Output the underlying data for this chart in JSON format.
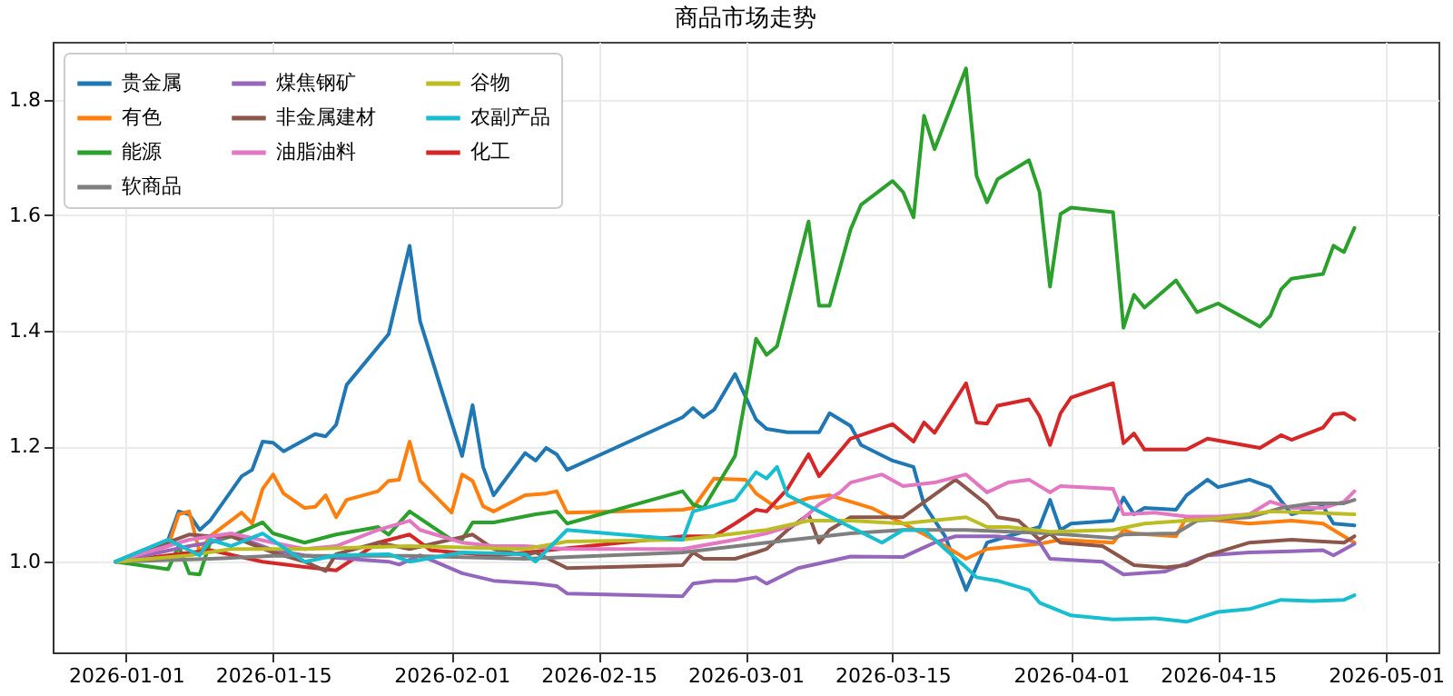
{
  "chart_data": {
    "type": "line",
    "title": "商品市场走势",
    "legend": "top left",
    "grid": true,
    "xlim": [
      "2025-12-25",
      "2026-05-06"
    ],
    "xticks": [
      "2026-01-01",
      "2026-01-15",
      "2026-02-01",
      "2026-02-15",
      "2026-03-01",
      "2026-03-15",
      "2026-04-01",
      "2026-04-15",
      "2026-05-01"
    ],
    "ylim": [
      0.843,
      1.9
    ],
    "yticks": [
      {
        "value": 1,
        "label": "1.0"
      },
      1.2,
      1.4,
      1.6,
      1.8
    ],
    "series": [
      {
        "name": "贵金属",
        "color": "#1f77b4",
        "x": [
          "2025-12-31",
          "2026-01-05",
          "2026-01-06",
          "2026-01-07",
          "2026-01-08",
          "2026-01-09",
          "2026-01-12",
          "2026-01-13",
          "2026-01-14",
          "2026-01-15",
          "2026-01-16",
          "2026-01-19",
          "2026-01-20",
          "2026-01-21",
          "2026-01-22",
          "2026-01-26",
          "2026-01-27",
          "2026-01-28",
          "2026-01-29",
          "2026-02-02",
          "2026-02-03",
          "2026-02-04",
          "2026-02-05",
          "2026-02-08",
          "2026-02-09",
          "2026-02-10",
          "2026-02-11",
          "2026-02-12",
          "2026-02-23",
          "2026-02-24",
          "2026-02-25",
          "2026-02-26",
          "2026-02-28",
          "2026-03-02",
          "2026-03-03",
          "2026-03-05",
          "2026-03-08",
          "2026-03-09",
          "2026-03-10",
          "2026-03-11",
          "2026-03-12",
          "2026-03-15",
          "2026-03-17",
          "2026-03-18",
          "2026-03-20",
          "2026-03-22",
          "2026-03-24",
          "2026-03-26",
          "2026-03-29",
          "2026-03-30",
          "2026-03-31",
          "2026-04-01",
          "2026-04-05",
          "2026-04-06",
          "2026-04-07",
          "2026-04-08",
          "2026-04-11",
          "2026-04-12",
          "2026-04-14",
          "2026-04-15",
          "2026-04-18",
          "2026-04-20",
          "2026-04-22",
          "2026-04-25",
          "2026-04-26",
          "2026-04-28"
        ],
        "values": [
          1.0,
          1.038,
          1.087,
          1.082,
          1.055,
          1.071,
          1.148,
          1.159,
          1.208,
          1.206,
          1.191,
          1.221,
          1.217,
          1.237,
          1.306,
          1.394,
          1.471,
          1.547,
          1.416,
          1.183,
          1.271,
          1.164,
          1.115,
          1.188,
          1.175,
          1.197,
          1.186,
          1.159,
          1.25,
          1.266,
          1.25,
          1.263,
          1.325,
          1.246,
          1.23,
          1.224,
          1.224,
          1.257,
          1.246,
          1.235,
          1.202,
          1.175,
          1.164,
          1.099,
          1.044,
          0.951,
          1.033,
          1.044,
          1.06,
          1.107,
          1.055,
          1.066,
          1.071,
          1.111,
          1.082,
          1.093,
          1.09,
          1.115,
          1.142,
          1.129,
          1.142,
          1.129,
          1.082,
          1.096,
          1.066,
          1.063
        ]
      },
      {
        "name": "有色",
        "color": "#ff7f0e",
        "x": [
          "2025-12-31",
          "2026-01-05",
          "2026-01-06",
          "2026-01-07",
          "2026-01-08",
          "2026-01-09",
          "2026-01-12",
          "2026-01-13",
          "2026-01-14",
          "2026-01-15",
          "2026-01-16",
          "2026-01-18",
          "2026-01-19",
          "2026-01-20",
          "2026-01-21",
          "2026-01-22",
          "2026-01-25",
          "2026-01-26",
          "2026-01-27",
          "2026-01-28",
          "2026-01-29",
          "2026-02-01",
          "2026-02-02",
          "2026-02-03",
          "2026-02-04",
          "2026-02-05",
          "2026-02-08",
          "2026-02-10",
          "2026-02-11",
          "2026-02-12",
          "2026-02-23",
          "2026-02-24",
          "2026-02-26",
          "2026-03-01",
          "2026-03-02",
          "2026-03-04",
          "2026-03-07",
          "2026-03-09",
          "2026-03-11",
          "2026-03-13",
          "2026-03-16",
          "2026-03-19",
          "2026-03-22",
          "2026-03-24",
          "2026-03-29",
          "2026-03-31",
          "2026-04-05",
          "2026-04-06",
          "2026-04-07",
          "2026-04-11",
          "2026-04-12",
          "2026-04-18",
          "2026-04-22",
          "2026-04-25",
          "2026-04-28"
        ],
        "values": [
          1.0,
          1.027,
          1.082,
          1.087,
          1.016,
          1.044,
          1.085,
          1.066,
          1.126,
          1.151,
          1.118,
          1.093,
          1.095,
          1.115,
          1.077,
          1.107,
          1.122,
          1.14,
          1.142,
          1.208,
          1.14,
          1.085,
          1.151,
          1.14,
          1.096,
          1.087,
          1.115,
          1.118,
          1.122,
          1.085,
          1.09,
          1.093,
          1.144,
          1.142,
          1.118,
          1.093,
          1.11,
          1.115,
          1.104,
          1.093,
          1.066,
          1.038,
          1.005,
          1.022,
          1.031,
          1.038,
          1.033,
          1.055,
          1.049,
          1.044,
          1.077,
          1.066,
          1.071,
          1.066,
          1.033
        ]
      },
      {
        "name": "能源",
        "color": "#2ca02c",
        "x": [
          "2025-12-31",
          "2026-01-05",
          "2026-01-06",
          "2026-01-07",
          "2026-01-08",
          "2026-01-09",
          "2026-01-11",
          "2026-01-14",
          "2026-01-15",
          "2026-01-18",
          "2026-01-21",
          "2026-01-25",
          "2026-01-26",
          "2026-01-28",
          "2026-02-01",
          "2026-02-02",
          "2026-02-03",
          "2026-02-05",
          "2026-02-09",
          "2026-02-11",
          "2026-02-12",
          "2026-02-23",
          "2026-02-24",
          "2026-02-25",
          "2026-02-28",
          "2026-03-02",
          "2026-03-03",
          "2026-03-04",
          "2026-03-07",
          "2026-03-08",
          "2026-03-09",
          "2026-03-11",
          "2026-03-12",
          "2026-03-15",
          "2026-03-16",
          "2026-03-17",
          "2026-03-18",
          "2026-03-19",
          "2026-03-22",
          "2026-03-23",
          "2026-03-24",
          "2026-03-25",
          "2026-03-28",
          "2026-03-29",
          "2026-03-30",
          "2026-03-31",
          "2026-04-01",
          "2026-04-05",
          "2026-04-06",
          "2026-04-07",
          "2026-04-08",
          "2026-04-11",
          "2026-04-13",
          "2026-04-15",
          "2026-04-19",
          "2026-04-20",
          "2026-04-21",
          "2026-04-22",
          "2026-04-25",
          "2026-04-26",
          "2026-04-27",
          "2026-04-28"
        ],
        "values": [
          1.0,
          0.987,
          1.027,
          0.98,
          0.978,
          1.033,
          1.044,
          1.068,
          1.049,
          1.033,
          1.047,
          1.06,
          1.047,
          1.087,
          1.038,
          1.038,
          1.068,
          1.068,
          1.082,
          1.087,
          1.066,
          1.122,
          1.099,
          1.093,
          1.183,
          1.386,
          1.358,
          1.373,
          1.589,
          1.443,
          1.443,
          1.575,
          1.618,
          1.659,
          1.64,
          1.596,
          1.772,
          1.714,
          1.854,
          1.668,
          1.622,
          1.662,
          1.695,
          1.64,
          1.476,
          1.602,
          1.613,
          1.605,
          1.405,
          1.462,
          1.44,
          1.487,
          1.432,
          1.447,
          1.407,
          1.426,
          1.471,
          1.49,
          1.498,
          1.547,
          1.536,
          1.578
        ]
      },
      {
        "name": "化工",
        "color": "#d62728",
        "x": [
          "2025-12-31",
          "2026-01-09",
          "2026-01-14",
          "2026-01-18",
          "2026-01-21",
          "2026-01-25",
          "2026-01-28",
          "2026-01-30",
          "2026-02-05",
          "2026-02-23",
          "2026-02-26",
          "2026-02-28",
          "2026-03-02",
          "2026-03-03",
          "2026-03-05",
          "2026-03-07",
          "2026-03-08",
          "2026-03-11",
          "2026-03-15",
          "2026-03-17",
          "2026-03-18",
          "2026-03-19",
          "2026-03-22",
          "2026-03-23",
          "2026-03-24",
          "2026-03-25",
          "2026-03-28",
          "2026-03-29",
          "2026-03-30",
          "2026-03-31",
          "2026-04-01",
          "2026-04-05",
          "2026-04-06",
          "2026-04-07",
          "2026-04-08",
          "2026-04-12",
          "2026-04-14",
          "2026-04-19",
          "2026-04-21",
          "2026-04-22",
          "2026-04-25",
          "2026-04-26",
          "2026-04-27",
          "2026-04-28"
        ],
        "values": [
          1.0,
          1.02,
          1.0,
          0.991,
          0.985,
          1.033,
          1.047,
          1.02,
          1.01,
          1.044,
          1.044,
          1.066,
          1.09,
          1.087,
          1.126,
          1.186,
          1.148,
          1.213,
          1.238,
          1.208,
          1.241,
          1.223,
          1.309,
          1.241,
          1.239,
          1.27,
          1.281,
          1.252,
          1.202,
          1.257,
          1.284,
          1.309,
          1.205,
          1.222,
          1.194,
          1.194,
          1.213,
          1.197,
          1.219,
          1.211,
          1.232,
          1.255,
          1.257,
          1.246
        ]
      },
      {
        "name": "煤焦钢矿",
        "color": "#9467bd",
        "x": [
          "2025-12-31",
          "2026-01-07",
          "2026-01-09",
          "2026-01-11",
          "2026-01-15",
          "2026-01-18",
          "2026-01-26",
          "2026-01-27",
          "2026-01-29",
          "2026-02-02",
          "2026-02-05",
          "2026-02-09",
          "2026-02-11",
          "2026-02-12",
          "2026-02-23",
          "2026-02-24",
          "2026-02-26",
          "2026-02-28",
          "2026-03-02",
          "2026-03-03",
          "2026-03-06",
          "2026-03-11",
          "2026-03-16",
          "2026-03-19",
          "2026-03-21",
          "2026-03-25",
          "2026-03-29",
          "2026-03-30",
          "2026-04-04",
          "2026-04-06",
          "2026-04-10",
          "2026-04-14",
          "2026-04-18",
          "2026-04-22",
          "2026-04-25",
          "2026-04-26",
          "2026-04-28"
        ],
        "values": [
          1.0,
          1.027,
          1.033,
          1.047,
          1.02,
          1.011,
          1.0,
          0.995,
          1.011,
          0.98,
          0.967,
          0.962,
          0.958,
          0.945,
          0.94,
          0.962,
          0.967,
          0.967,
          0.973,
          0.962,
          0.989,
          1.009,
          1.008,
          1.033,
          1.044,
          1.044,
          1.033,
          1.005,
          1.0,
          0.978,
          0.983,
          1.011,
          1.016,
          1.018,
          1.02,
          1.011,
          1.031
        ]
      },
      {
        "name": "非金属建材",
        "color": "#8c564b",
        "x": [
          "2025-12-31",
          "2026-01-07",
          "2026-01-09",
          "2026-01-11",
          "2026-01-15",
          "2026-01-18",
          "2026-01-20",
          "2026-01-21",
          "2026-01-25",
          "2026-01-28",
          "2026-02-03",
          "2026-02-05",
          "2026-02-08",
          "2026-02-09",
          "2026-02-12",
          "2026-02-23",
          "2026-02-24",
          "2026-02-25",
          "2026-02-28",
          "2026-03-02",
          "2026-03-03",
          "2026-03-05",
          "2026-03-07",
          "2026-03-08",
          "2026-03-09",
          "2026-03-11",
          "2026-03-16",
          "2026-03-21",
          "2026-03-24",
          "2026-03-25",
          "2026-03-27",
          "2026-03-29",
          "2026-03-30",
          "2026-03-31",
          "2026-04-04",
          "2026-04-07",
          "2026-04-10",
          "2026-04-12",
          "2026-04-14",
          "2026-04-18",
          "2026-04-22",
          "2026-04-25",
          "2026-04-27",
          "2026-04-28"
        ],
        "values": [
          1.0,
          1.047,
          1.044,
          1.044,
          1.016,
          1.0,
          0.984,
          1.013,
          1.033,
          1.022,
          1.047,
          1.022,
          1.011,
          1.016,
          0.989,
          0.994,
          1.016,
          1.005,
          1.005,
          1.016,
          1.022,
          1.055,
          1.082,
          1.033,
          1.055,
          1.077,
          1.077,
          1.142,
          1.099,
          1.077,
          1.071,
          1.038,
          1.049,
          1.033,
          1.027,
          0.994,
          0.99,
          0.994,
          1.011,
          1.033,
          1.038,
          1.035,
          1.033,
          1.044
        ]
      },
      {
        "name": "油脂油料",
        "color": "#e377c2",
        "x": [
          "2025-12-31",
          "2026-01-07",
          "2026-01-11",
          "2026-01-15",
          "2026-01-18",
          "2026-01-21",
          "2026-01-25",
          "2026-01-28",
          "2026-01-29",
          "2026-02-02",
          "2026-02-05",
          "2026-02-08",
          "2026-02-12",
          "2026-02-23",
          "2026-02-28",
          "2026-03-03",
          "2026-03-06",
          "2026-03-08",
          "2026-03-10",
          "2026-03-11",
          "2026-03-14",
          "2026-03-16",
          "2026-03-19",
          "2026-03-22",
          "2026-03-24",
          "2026-03-26",
          "2026-03-28",
          "2026-03-30",
          "2026-03-31",
          "2026-04-05",
          "2026-04-06",
          "2026-04-09",
          "2026-04-12",
          "2026-04-15",
          "2026-04-18",
          "2026-04-20",
          "2026-04-22",
          "2026-04-25",
          "2026-04-27",
          "2026-04-28"
        ],
        "values": [
          1.0,
          1.038,
          1.049,
          1.033,
          1.022,
          1.027,
          1.055,
          1.071,
          1.055,
          1.033,
          1.027,
          1.027,
          1.022,
          1.022,
          1.038,
          1.049,
          1.066,
          1.099,
          1.12,
          1.137,
          1.151,
          1.131,
          1.137,
          1.151,
          1.12,
          1.137,
          1.142,
          1.12,
          1.131,
          1.126,
          1.082,
          1.085,
          1.078,
          1.078,
          1.082,
          1.104,
          1.093,
          1.093,
          1.104,
          1.122
        ]
      },
      {
        "name": "软商品",
        "color": "#7f7f7f",
        "x": [
          "2025-12-31",
          "2026-01-09",
          "2026-01-15",
          "2026-01-28",
          "2026-02-08",
          "2026-02-23",
          "2026-03-03",
          "2026-03-11",
          "2026-03-16",
          "2026-03-22",
          "2026-03-30",
          "2026-04-05",
          "2026-04-06",
          "2026-04-11",
          "2026-04-13",
          "2026-04-18",
          "2026-04-21",
          "2026-04-24",
          "2026-04-27",
          "2026-04-28"
        ],
        "values": [
          1.0,
          1.005,
          1.01,
          1.01,
          1.005,
          1.016,
          1.033,
          1.049,
          1.055,
          1.055,
          1.049,
          1.041,
          1.047,
          1.049,
          1.071,
          1.077,
          1.093,
          1.101,
          1.101,
          1.107
        ]
      },
      {
        "name": "谷物",
        "color": "#bcbd22",
        "x": [
          "2025-12-31",
          "2026-01-07",
          "2026-01-11",
          "2026-01-18",
          "2026-01-28",
          "2026-02-08",
          "2026-02-12",
          "2026-02-23",
          "2026-03-03",
          "2026-03-07",
          "2026-03-11",
          "2026-03-16",
          "2026-03-22",
          "2026-03-24",
          "2026-03-26",
          "2026-03-30",
          "2026-04-05",
          "2026-04-08",
          "2026-04-15",
          "2026-04-20",
          "2026-04-25",
          "2026-04-28"
        ],
        "values": [
          1.0,
          1.011,
          1.022,
          1.022,
          1.027,
          1.022,
          1.035,
          1.038,
          1.055,
          1.071,
          1.071,
          1.066,
          1.077,
          1.06,
          1.06,
          1.052,
          1.055,
          1.066,
          1.075,
          1.087,
          1.084,
          1.082
        ]
      },
      {
        "name": "农副产品",
        "color": "#17becf",
        "x": [
          "2025-12-31",
          "2026-01-05",
          "2026-01-08",
          "2026-01-09",
          "2026-01-11",
          "2026-01-14",
          "2026-01-18",
          "2026-01-21",
          "2026-01-26",
          "2026-01-28",
          "2026-02-02",
          "2026-02-08",
          "2026-02-09",
          "2026-02-12",
          "2026-02-23",
          "2026-02-24",
          "2026-02-28",
          "2026-03-02",
          "2026-03-03",
          "2026-03-04",
          "2026-03-05",
          "2026-03-08",
          "2026-03-11",
          "2026-03-14",
          "2026-03-16",
          "2026-03-18",
          "2026-03-20",
          "2026-03-22",
          "2026-03-23",
          "2026-03-25",
          "2026-03-28",
          "2026-03-29",
          "2026-04-01",
          "2026-04-05",
          "2026-04-09",
          "2026-04-12",
          "2026-04-15",
          "2026-04-18",
          "2026-04-21",
          "2026-04-24",
          "2026-04-27",
          "2026-04-28"
        ],
        "values": [
          1.0,
          1.038,
          1.011,
          1.038,
          1.027,
          1.049,
          1.0,
          1.011,
          1.013,
          1.0,
          1.016,
          1.013,
          1.0,
          1.055,
          1.038,
          1.087,
          1.107,
          1.155,
          1.144,
          1.164,
          1.115,
          1.087,
          1.06,
          1.033,
          1.055,
          1.055,
          1.022,
          0.99,
          0.973,
          0.967,
          0.951,
          0.929,
          0.907,
          0.9,
          0.902,
          0.896,
          0.913,
          0.918,
          0.934,
          0.932,
          0.934,
          0.942
        ]
      }
    ]
  }
}
